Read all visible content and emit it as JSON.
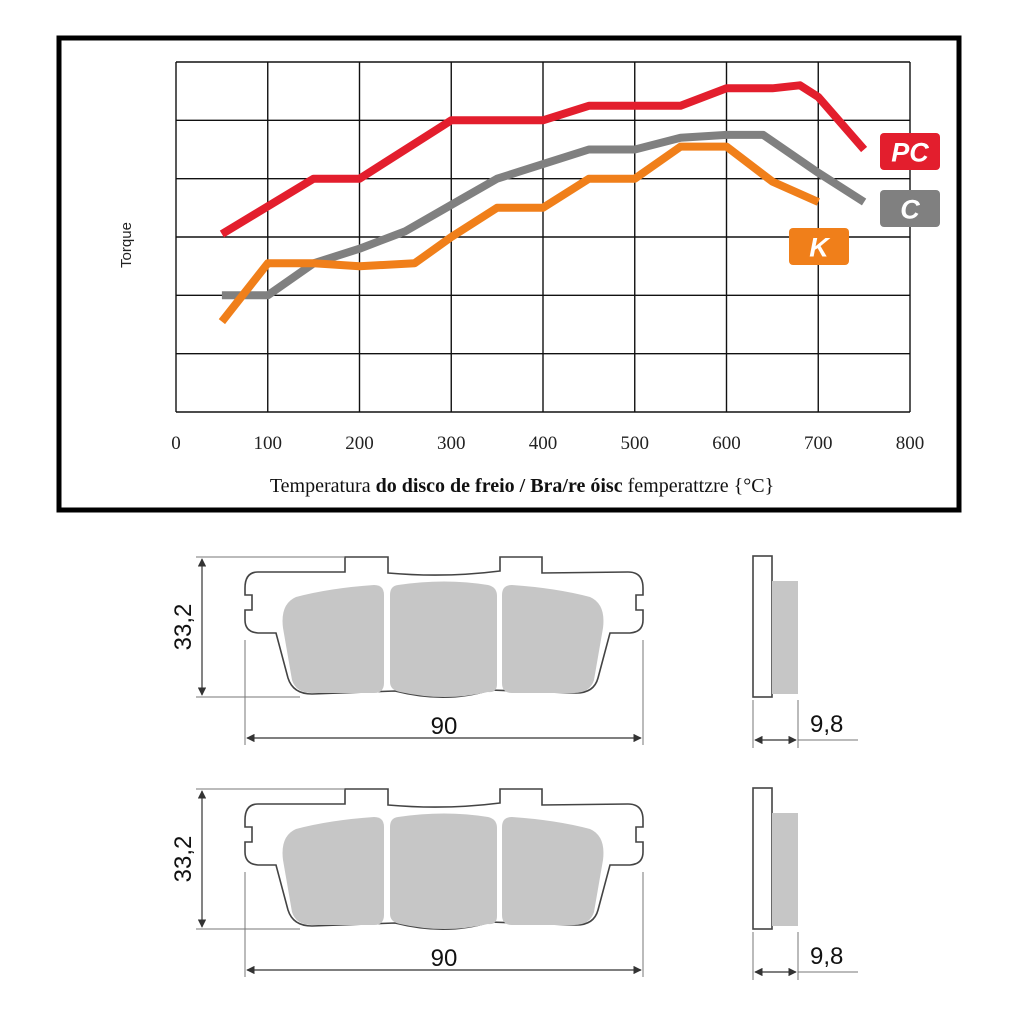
{
  "chart_data": {
    "type": "line",
    "xlabel_parts": [
      {
        "text": "Temperatura ",
        "bold": false
      },
      {
        "text": "do disco de freio / Bra/re óisc",
        "bold": true
      },
      {
        "text": " femperattzre {°C}",
        "bold": false
      }
    ],
    "ylabel": "Torque",
    "xlim": [
      0,
      800
    ],
    "ylim": [
      0,
      6
    ],
    "x_ticks": [
      "0",
      "100",
      "200",
      "300",
      "400",
      "500",
      "600",
      "700",
      "800"
    ],
    "grid": true,
    "series": [
      {
        "name": "PC",
        "color": "#e31e2d",
        "x": [
          50,
          150,
          200,
          300,
          400,
          450,
          550,
          600,
          650,
          680,
          700,
          750
        ],
        "y": [
          3.05,
          4.0,
          4.0,
          5.0,
          5.0,
          5.25,
          5.25,
          5.55,
          5.55,
          5.6,
          5.4,
          4.5
        ]
      },
      {
        "name": "C",
        "color": "#808080",
        "x": [
          50,
          100,
          150,
          200,
          250,
          300,
          350,
          400,
          450,
          500,
          550,
          600,
          640,
          700,
          750
        ],
        "y": [
          2.0,
          2.0,
          2.55,
          2.8,
          3.1,
          3.55,
          4.0,
          4.25,
          4.5,
          4.5,
          4.7,
          4.75,
          4.75,
          4.1,
          3.6
        ]
      },
      {
        "name": "K",
        "color": "#f07f1a",
        "x": [
          50,
          100,
          150,
          200,
          260,
          300,
          350,
          400,
          450,
          500,
          550,
          600,
          650,
          700
        ],
        "y": [
          1.55,
          2.55,
          2.55,
          2.5,
          2.55,
          3.0,
          3.5,
          3.5,
          4.0,
          4.0,
          4.55,
          4.55,
          3.95,
          3.6
        ]
      }
    ]
  },
  "diagrams": [
    {
      "height_label": "33,2",
      "width_label": "90",
      "thickness_label": "9,8"
    },
    {
      "height_label": "33,2",
      "width_label": "90",
      "thickness_label": "9,8"
    }
  ]
}
